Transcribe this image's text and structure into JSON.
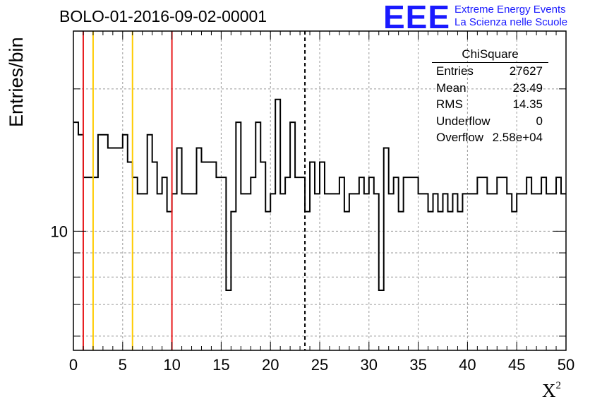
{
  "title": "BOLO-01-2016-09-02-00001",
  "logo": {
    "mark": "EEE",
    "line1": "Extreme Energy Events",
    "line2": "La Scienza nelle Scuole",
    "color": "#1a1aff"
  },
  "stats_box": {
    "title": "ChiSquare",
    "rows": [
      {
        "label": "Entries",
        "value": "27627"
      },
      {
        "label": "Mean",
        "value": "23.49"
      },
      {
        "label": "RMS",
        "value": "14.35"
      },
      {
        "label": "Underflow",
        "value": "0"
      },
      {
        "label": "Overflow",
        "value": "2.58e+04"
      }
    ]
  },
  "chart_data": {
    "type": "histogram",
    "title": "BOLO-01-2016-09-02-00001",
    "xlabel": "X²",
    "ylabel": "Entries/bin",
    "xlim": [
      0,
      50
    ],
    "ylim": [
      5.6,
      26.5
    ],
    "y_scale": "log",
    "grid": true,
    "bin_width": 0.5,
    "x_ticks": [
      0,
      5,
      10,
      15,
      20,
      25,
      30,
      35,
      40,
      45,
      50
    ],
    "y_tick_labels": [
      {
        "value": 10,
        "label": "10"
      }
    ],
    "values": [
      17,
      16,
      13,
      13,
      13,
      16,
      16,
      15,
      15,
      15,
      16,
      14,
      13,
      12,
      12,
      16,
      14,
      12,
      13,
      11,
      12,
      15,
      12,
      12,
      12,
      15,
      14,
      14,
      14,
      13,
      13,
      7.5,
      11,
      17,
      12,
      12,
      13,
      17,
      14,
      11,
      12,
      19,
      12,
      13,
      17,
      13,
      13,
      11,
      14,
      12,
      14,
      12,
      12,
      12,
      13,
      11,
      12,
      12,
      13,
      12,
      13,
      12,
      7.5,
      15,
      12,
      13,
      11,
      13,
      13,
      13,
      12,
      12,
      11,
      12,
      11,
      12,
      11,
      12,
      11,
      12,
      12,
      12,
      13,
      13,
      12,
      12,
      13,
      13,
      12,
      11,
      12,
      12,
      13,
      12,
      12,
      13,
      12,
      12,
      13,
      12
    ],
    "vertical_lines": [
      {
        "x": 1,
        "color": "#e8191b",
        "style": "solid"
      },
      {
        "x": 2,
        "color": "#ffcc00",
        "style": "solid"
      },
      {
        "x": 6,
        "color": "#ffcc00",
        "style": "solid"
      },
      {
        "x": 10,
        "color": "#e8191b",
        "style": "solid"
      },
      {
        "x": 23.5,
        "color": "#000000",
        "style": "dashed"
      }
    ],
    "line_color": "#000000",
    "grid_color": "#9a9a9a"
  }
}
